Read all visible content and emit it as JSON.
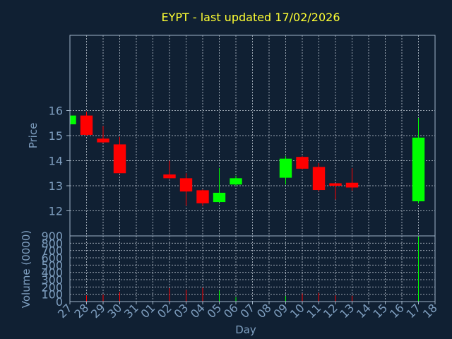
{
  "title": "EYPT - last updated 17/02/2026",
  "colors": {
    "background": "#102033",
    "title": "#ffff33",
    "axis_text": "#7f9fc0",
    "frame": "#a0b4c8",
    "grid": "#c8d2dc",
    "up": "#00ff00",
    "down": "#ff0000"
  },
  "chart_data": [
    {
      "type": "candlestick",
      "ylabel": "Price",
      "ylim": [
        11.0,
        19.0
      ],
      "yticks": [
        "12",
        "13",
        "14",
        "15",
        "16"
      ],
      "grid": true,
      "categories": [
        "27",
        "28",
        "29",
        "30",
        "31",
        "01",
        "02",
        "03",
        "04",
        "05",
        "06",
        "07",
        "08",
        "09",
        "10",
        "11",
        "12",
        "13",
        "14",
        "15",
        "16",
        "17",
        "18"
      ],
      "candles": [
        {
          "x": "27",
          "open": 15.45,
          "close": 15.8,
          "high": 15.8,
          "low": 15.45
        },
        {
          "x": "28",
          "open": 15.8,
          "close": 15.03,
          "high": 15.95,
          "low": 15.0
        },
        {
          "x": "29",
          "open": 14.88,
          "close": 14.73,
          "high": 15.38,
          "low": 14.7
        },
        {
          "x": "30",
          "open": 14.65,
          "close": 13.5,
          "high": 14.95,
          "low": 13.5
        },
        {
          "x": "02",
          "open": 13.45,
          "close": 13.3,
          "high": 14.0,
          "low": 13.28
        },
        {
          "x": "03",
          "open": 13.3,
          "close": 12.77,
          "high": 13.5,
          "low": 12.2
        },
        {
          "x": "04",
          "open": 12.82,
          "close": 12.3,
          "high": 12.85,
          "low": 12.2
        },
        {
          "x": "05",
          "open": 12.35,
          "close": 12.72,
          "high": 13.7,
          "low": 12.33
        },
        {
          "x": "06",
          "open": 13.05,
          "close": 13.3,
          "high": 13.4,
          "low": 13.0
        },
        {
          "x": "09",
          "open": 13.32,
          "close": 14.08,
          "high": 14.18,
          "low": 13.05
        },
        {
          "x": "10",
          "open": 14.15,
          "close": 13.68,
          "high": 14.18,
          "low": 13.65
        },
        {
          "x": "11",
          "open": 13.75,
          "close": 12.83,
          "high": 13.9,
          "low": 12.78
        },
        {
          "x": "12",
          "open": 13.1,
          "close": 13.0,
          "high": 13.1,
          "low": 12.45
        },
        {
          "x": "13",
          "open": 13.12,
          "close": 12.93,
          "high": 13.7,
          "low": 12.8
        },
        {
          "x": "17",
          "open": 12.38,
          "close": 14.92,
          "high": 15.7,
          "low": 12.3
        }
      ]
    },
    {
      "type": "bar",
      "xlabel": "Day",
      "ylabel": "Volume (0000)",
      "ylim": [
        0,
        900
      ],
      "yticks": [
        "0",
        "100",
        "200",
        "300",
        "400",
        "500",
        "600",
        "700",
        "800",
        "900"
      ],
      "categories": [
        "27",
        "28",
        "29",
        "30",
        "31",
        "01",
        "02",
        "03",
        "04",
        "05",
        "06",
        "07",
        "08",
        "09",
        "10",
        "11",
        "12",
        "13",
        "14",
        "15",
        "16",
        "17",
        "18"
      ],
      "bars": [
        {
          "x": "27",
          "value": 10,
          "dir": "up"
        },
        {
          "x": "28",
          "value": 85,
          "dir": "down"
        },
        {
          "x": "29",
          "value": 95,
          "dir": "down"
        },
        {
          "x": "30",
          "value": 130,
          "dir": "down"
        },
        {
          "x": "02",
          "value": 185,
          "dir": "down"
        },
        {
          "x": "03",
          "value": 160,
          "dir": "down"
        },
        {
          "x": "04",
          "value": 190,
          "dir": "down"
        },
        {
          "x": "05",
          "value": 150,
          "dir": "up"
        },
        {
          "x": "06",
          "value": 60,
          "dir": "up"
        },
        {
          "x": "09",
          "value": 75,
          "dir": "up"
        },
        {
          "x": "10",
          "value": 110,
          "dir": "down"
        },
        {
          "x": "11",
          "value": 120,
          "dir": "down"
        },
        {
          "x": "12",
          "value": 85,
          "dir": "down"
        },
        {
          "x": "13",
          "value": 80,
          "dir": "down"
        },
        {
          "x": "17",
          "value": 890,
          "dir": "up"
        }
      ]
    }
  ]
}
